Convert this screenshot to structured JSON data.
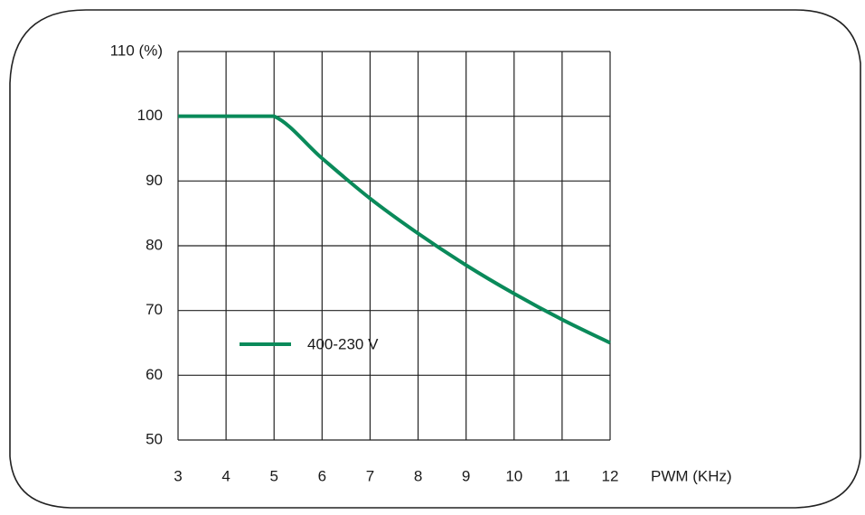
{
  "chart_data": {
    "type": "line",
    "title": "",
    "xlabel": "PWM (KHz)",
    "ylabel": "",
    "xlim": [
      3,
      12
    ],
    "ylim": [
      50,
      110
    ],
    "x_ticks": [
      "3",
      "4",
      "5",
      "6",
      "7",
      "8",
      "9",
      "10",
      "11",
      "12"
    ],
    "y_ticks": [
      "110 (%)",
      "100",
      "90",
      "80",
      "70",
      "60",
      "50"
    ],
    "grid": true,
    "legend": "bottom-left",
    "series": [
      {
        "name": "400-230 V",
        "color": "#0a8a5a",
        "x": [
          3,
          4,
          5,
          6,
          7,
          8,
          9,
          10,
          11,
          12
        ],
        "y": [
          100,
          100,
          100,
          93.5,
          87.3,
          81.9,
          77.0,
          72.6,
          68.6,
          65.0
        ]
      }
    ]
  }
}
